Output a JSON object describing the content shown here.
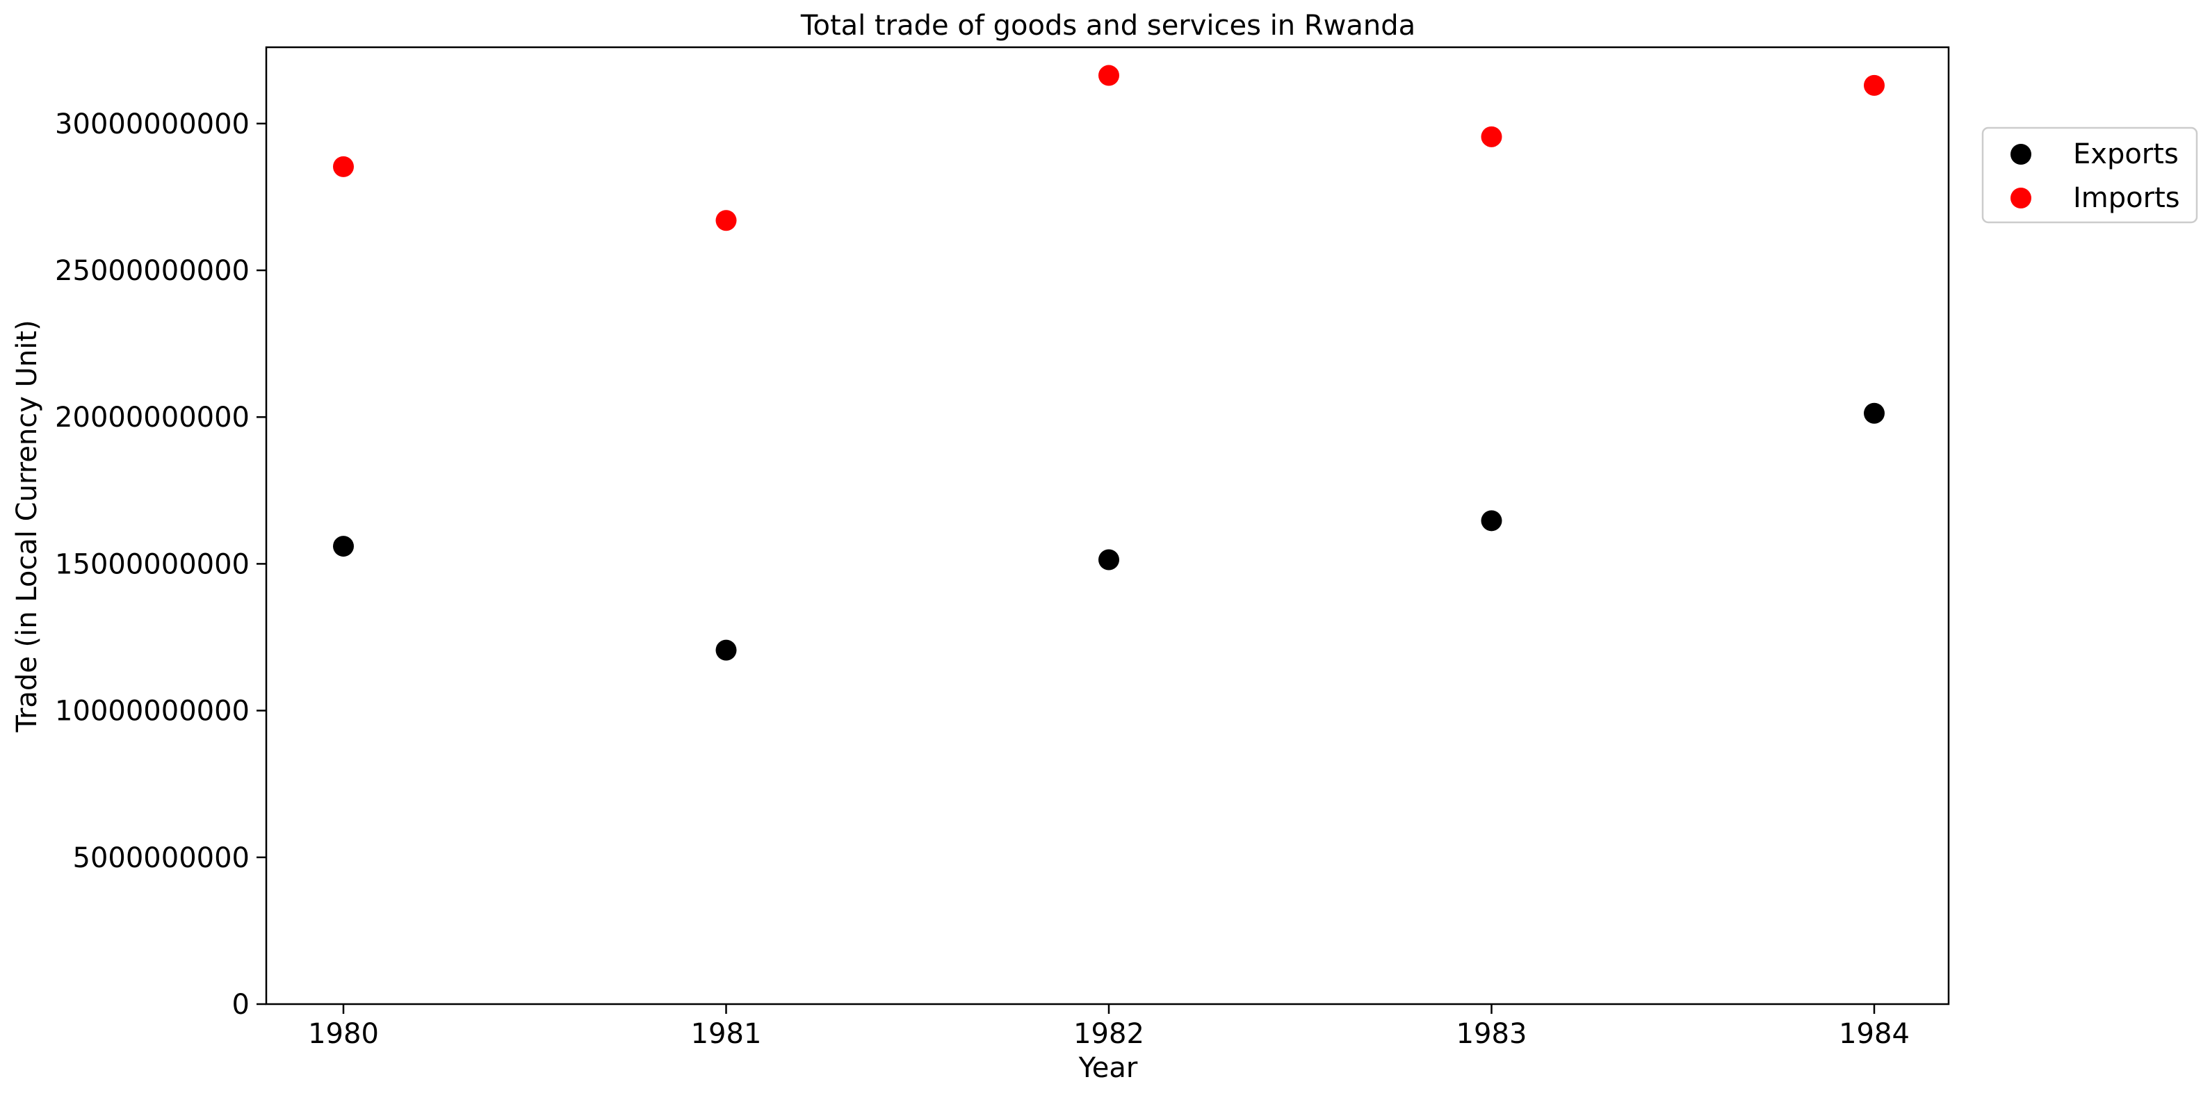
{
  "chart_data": {
    "type": "scatter",
    "title": "Total trade of goods and services in Rwanda",
    "xlabel": "Year",
    "ylabel": "Trade (in Local Currency Unit)",
    "x": [
      1980,
      1981,
      1982,
      1983,
      1984
    ],
    "x_tick_labels": [
      "1980",
      "1981",
      "1982",
      "1983",
      "1984"
    ],
    "ylim": [
      0,
      32600000000
    ],
    "y_ticks": [
      0,
      5000000000,
      10000000000,
      15000000000,
      20000000000,
      25000000000,
      30000000000
    ],
    "y_tick_labels": [
      "0",
      "5000000000",
      "10000000000",
      "15000000000",
      "20000000000",
      "25000000000",
      "30000000000"
    ],
    "grid": false,
    "legend_position": "outside-top-right",
    "series": [
      {
        "name": "Exports",
        "color": "#000000",
        "values": [
          15600000000,
          12060000000,
          15140000000,
          16470000000,
          20130000000
        ]
      },
      {
        "name": "Imports",
        "color": "#ff0000",
        "values": [
          28530000000,
          26700000000,
          31640000000,
          29550000000,
          31300000000
        ]
      }
    ]
  }
}
